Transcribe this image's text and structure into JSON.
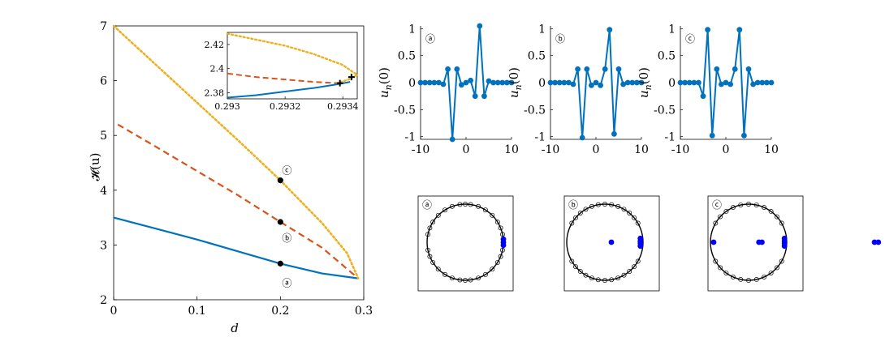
{
  "colors": {
    "blue": "#0072bd",
    "orange": "#d95319",
    "yellow": "#edb120",
    "axis": "#000000",
    "blue_dot": "#0000ff"
  },
  "chart_data": [
    {
      "id": "main",
      "type": "line",
      "xlabel": "d",
      "ylabel_display": "𝓗(u)",
      "ylabel": "\\mathcal{H}(\\mathbf{u})",
      "xlim": [
        0,
        0.3
      ],
      "ylim": [
        2,
        7
      ],
      "xticks": [
        0,
        0.1,
        0.2,
        0.3
      ],
      "xtick_labels": [
        "0",
        "0.1",
        "0.2",
        "0.3"
      ],
      "yticks": [
        2,
        3,
        4,
        5,
        6,
        7
      ],
      "ytick_labels": [
        "2",
        "3",
        "4",
        "5",
        "6",
        "7"
      ],
      "series": [
        {
          "name": "a",
          "style": "solid",
          "color": "#0072bd",
          "x": [
            0,
            0.05,
            0.1,
            0.15,
            0.2,
            0.25,
            0.2934
          ],
          "y": [
            3.5,
            3.3,
            3.1,
            2.88,
            2.66,
            2.48,
            2.39
          ]
        },
        {
          "name": "b",
          "style": "dashed",
          "color": "#d95319",
          "x": [
            0.005,
            0.05,
            0.1,
            0.15,
            0.2,
            0.25,
            0.2934
          ],
          "y": [
            5.2,
            4.8,
            4.35,
            3.9,
            3.42,
            2.95,
            2.39
          ]
        },
        {
          "name": "c",
          "style": "dotted",
          "color": "#edb120",
          "x": [
            0,
            0.05,
            0.1,
            0.15,
            0.2,
            0.25,
            0.28,
            0.2934
          ],
          "y": [
            7.0,
            6.3,
            5.6,
            4.9,
            4.18,
            3.4,
            2.85,
            2.39
          ]
        }
      ],
      "markers": [
        {
          "x": 0.2,
          "y": 4.18,
          "label": "c"
        },
        {
          "x": 0.2,
          "y": 3.42,
          "label": "b"
        },
        {
          "x": 0.2,
          "y": 2.66,
          "label": "a"
        }
      ],
      "annotations": [
        "ⓐ",
        "ⓑ",
        "ⓒ"
      ]
    },
    {
      "id": "inset",
      "type": "line",
      "xlim": [
        0.293,
        0.29345
      ],
      "ylim": [
        2.375,
        2.43
      ],
      "xticks": [
        0.293,
        0.2932,
        0.2934
      ],
      "xtick_labels": [
        "0.293",
        "0.2932",
        "0.2934"
      ],
      "yticks": [
        2.38,
        2.4,
        2.42
      ],
      "ytick_labels": [
        "2.38",
        "2.4",
        "2.42"
      ],
      "series": [
        {
          "name": "a",
          "style": "solid",
          "color": "#0072bd",
          "x": [
            0.293,
            0.2931,
            0.2932,
            0.2933,
            0.29338,
            0.293425
          ],
          "y": [
            2.376,
            2.378,
            2.381,
            2.384,
            2.387,
            2.389
          ]
        },
        {
          "name": "b",
          "style": "dashed",
          "color": "#d95319",
          "x": [
            0.293,
            0.2931,
            0.2932,
            0.2933,
            0.29338
          ],
          "y": [
            2.396,
            2.393,
            2.391,
            2.389,
            2.388
          ]
        },
        {
          "name": "c",
          "style": "dotted",
          "color": "#edb120",
          "x": [
            0.293,
            0.2931,
            0.2932,
            0.2933,
            0.2934,
            0.29343,
            0.29345,
            0.29342,
            0.29338
          ],
          "y": [
            2.429,
            2.424,
            2.419,
            2.412,
            2.403,
            2.398,
            2.395,
            2.391,
            2.388
          ]
        }
      ],
      "plus_markers": [
        {
          "x": 0.29339,
          "y": 2.388
        },
        {
          "x": 0.29343,
          "y": 2.393
        }
      ]
    },
    {
      "id": "profile-a",
      "type": "line",
      "label": "ⓐ",
      "ylabel": "u_n(0)",
      "ylabel_main": "u",
      "ylabel_sub": "n",
      "ylabel_arg": "(0)",
      "xlim": [
        -10,
        10
      ],
      "ylim": [
        -1.05,
        1.05
      ],
      "xticks": [
        -10,
        0,
        10
      ],
      "xtick_labels": [
        "-10",
        "0",
        "10"
      ],
      "yticks": [
        -1,
        -0.5,
        0,
        0.5,
        1
      ],
      "ytick_labels": [
        "-1",
        "-0.5",
        "0",
        "0.5",
        "1"
      ],
      "x": [
        -10,
        -9,
        -8,
        -7,
        -6,
        -5,
        -4,
        -3,
        -2,
        -1,
        0,
        1,
        2,
        3,
        4,
        5,
        6,
        7,
        8,
        9,
        10
      ],
      "values": [
        0,
        0,
        0,
        0,
        0,
        -0.03,
        0.25,
        -1.05,
        0.25,
        -0.04,
        0,
        0.04,
        -0.25,
        1.05,
        -0.25,
        0.03,
        0,
        0,
        0,
        0,
        0
      ]
    },
    {
      "id": "profile-b",
      "type": "line",
      "label": "ⓑ",
      "ylabel": "u_n(0)",
      "ylabel_main": "u",
      "ylabel_sub": "n",
      "ylabel_arg": "(0)",
      "xlim": [
        -10,
        10
      ],
      "ylim": [
        -1.05,
        1.05
      ],
      "xticks": [
        -10,
        0,
        10
      ],
      "xtick_labels": [
        "-10",
        "0",
        "10"
      ],
      "yticks": [
        -1,
        -0.5,
        0,
        0.5,
        1
      ],
      "ytick_labels": [
        "-1",
        "-0.5",
        "0",
        "0.5",
        "1"
      ],
      "x": [
        -10,
        -9,
        -8,
        -7,
        -6,
        -5,
        -4,
        -3,
        -2,
        -1,
        0,
        1,
        2,
        3,
        4,
        5,
        6,
        7,
        8,
        9,
        10
      ],
      "values": [
        0,
        0,
        0,
        0,
        0,
        -0.03,
        0.25,
        -1.02,
        0.25,
        -0.05,
        0,
        -0.05,
        0.25,
        0.98,
        -0.95,
        0.25,
        -0.03,
        0,
        0,
        0,
        0
      ]
    },
    {
      "id": "profile-c",
      "type": "line",
      "label": "ⓒ",
      "ylabel": "u_n(0)",
      "ylabel_main": "u",
      "ylabel_sub": "n",
      "ylabel_arg": "(0)",
      "xlim": [
        -10,
        10
      ],
      "ylim": [
        -1.05,
        1.05
      ],
      "xticks": [
        -10,
        0,
        10
      ],
      "xtick_labels": [
        "-10",
        "0",
        "10"
      ],
      "yticks": [
        -1,
        -0.5,
        0,
        0.5,
        1
      ],
      "ytick_labels": [
        "-1",
        "-0.5",
        "0",
        "0.5",
        "1"
      ],
      "x": [
        -10,
        -9,
        -8,
        -7,
        -6,
        -5,
        -4,
        -3,
        -2,
        -1,
        0,
        1,
        2,
        3,
        4,
        5,
        6,
        7,
        8,
        9,
        10
      ],
      "values": [
        0,
        0,
        0,
        0,
        0,
        -0.25,
        0.98,
        -0.98,
        0.25,
        -0.03,
        0,
        -0.03,
        0.25,
        0.98,
        -0.98,
        0.25,
        -0.03,
        0,
        0,
        0,
        0
      ]
    },
    {
      "id": "floquet-a",
      "type": "scatter",
      "label": "ⓐ",
      "unit_circle_angles_deg": [
        12,
        22,
        32,
        45,
        58,
        70,
        82,
        90,
        98,
        110,
        122,
        135,
        148,
        158,
        168,
        192,
        202,
        212,
        225,
        238,
        250,
        262,
        270,
        278,
        290,
        302,
        315,
        328,
        338,
        348
      ],
      "off_points": [
        [
          1.0,
          0.08
        ],
        [
          1.0,
          0.0
        ],
        [
          1.0,
          -0.08
        ]
      ]
    },
    {
      "id": "floquet-b",
      "type": "scatter",
      "label": "ⓑ",
      "unit_circle_angles_deg": [
        30,
        40,
        50,
        60,
        70,
        80,
        90,
        100,
        110,
        120,
        130,
        140,
        150,
        210,
        220,
        230,
        240,
        250,
        260,
        270,
        280,
        290,
        300,
        310,
        320,
        330
      ],
      "off_points": [
        [
          0.93,
          0.1
        ],
        [
          0.93,
          0.03
        ],
        [
          0.93,
          -0.03
        ],
        [
          0.93,
          -0.1
        ],
        [
          0.17,
          0.0
        ],
        [
          2.85,
          0.0
        ]
      ]
    },
    {
      "id": "floquet-c",
      "type": "scatter",
      "label": "ⓒ",
      "unit_circle_angles_deg": [
        30,
        42,
        54,
        66,
        78,
        90,
        102,
        114,
        126,
        138,
        150,
        210,
        222,
        234,
        246,
        258,
        270,
        282,
        294,
        306,
        318,
        330
      ],
      "off_points": [
        [
          0.94,
          0.1
        ],
        [
          0.94,
          0.03
        ],
        [
          0.94,
          -0.03
        ],
        [
          0.94,
          -0.1
        ],
        [
          0.27,
          0.0
        ],
        [
          0.35,
          0.0
        ],
        [
          3.3,
          0.0
        ],
        [
          3.4,
          0.0
        ]
      ]
    }
  ]
}
